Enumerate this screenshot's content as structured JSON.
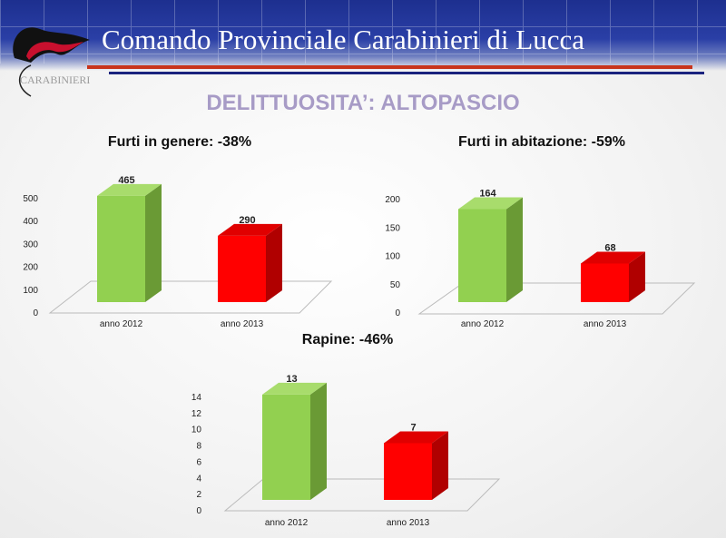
{
  "header": {
    "title": "Comando Provinciale Carabinieri di Lucca",
    "logo_text": "CARABINIERI"
  },
  "page_title": "DELITTUOSITA’: ALTOPASCIO",
  "colors": {
    "green_front": "#92d050",
    "green_side": "#6a9a35",
    "green_top": "#a8dc6c",
    "red_front": "#ff0000",
    "red_side": "#b00000",
    "red_top": "#e00000"
  },
  "chart_data": [
    {
      "type": "bar",
      "title": "Furti in genere: -38%",
      "categories": [
        "anno 2012",
        "anno 2013"
      ],
      "values": [
        465,
        290
      ],
      "data_labels": [
        "465",
        "290"
      ],
      "ylim": [
        0,
        500
      ],
      "yticks": [
        0,
        100,
        200,
        300,
        400,
        500
      ],
      "xlabel": "",
      "ylabel": "",
      "grid": false,
      "legend": "none"
    },
    {
      "type": "bar",
      "title": "Furti in abitazione: -59%",
      "categories": [
        "anno 2012",
        "anno 2013"
      ],
      "values": [
        164,
        68
      ],
      "data_labels": [
        "164",
        "68"
      ],
      "ylim": [
        0,
        200
      ],
      "yticks": [
        0,
        50,
        100,
        150,
        200
      ],
      "xlabel": "",
      "ylabel": "",
      "grid": false,
      "legend": "none"
    },
    {
      "type": "bar",
      "title": "Rapine: -46%",
      "categories": [
        "anno 2012",
        "anno 2013"
      ],
      "values": [
        13,
        7
      ],
      "data_labels": [
        "13",
        "7"
      ],
      "ylim": [
        0,
        14
      ],
      "yticks": [
        0,
        2,
        4,
        6,
        8,
        10,
        12,
        14
      ],
      "xlabel": "",
      "ylabel": "",
      "grid": false,
      "legend": "none"
    }
  ]
}
